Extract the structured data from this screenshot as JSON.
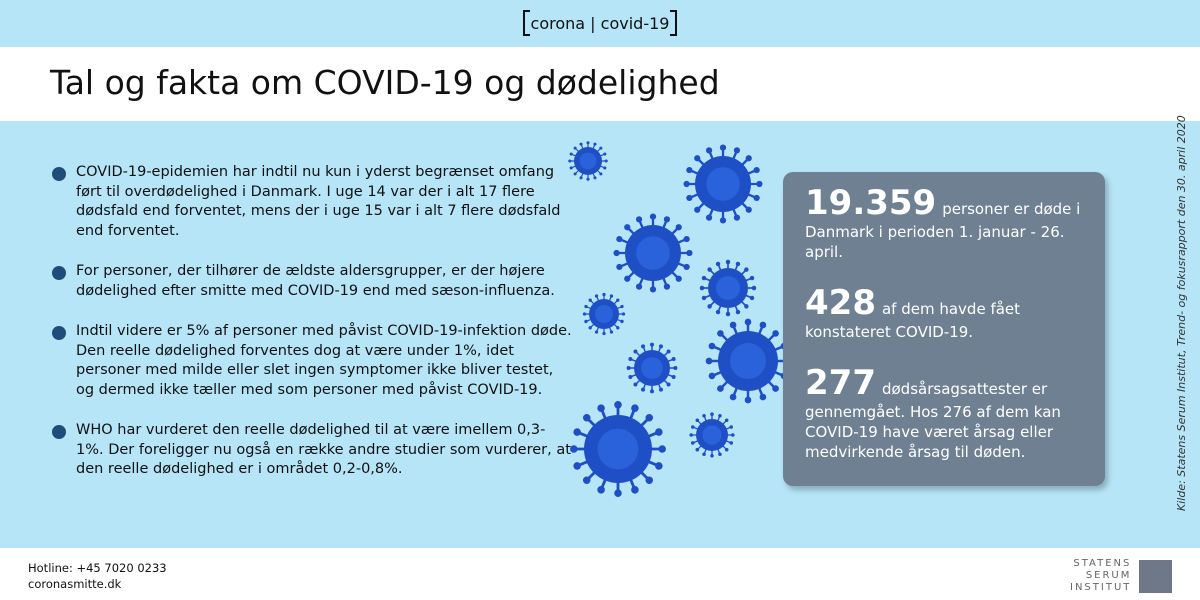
{
  "header": {
    "brand": "corona | covid-19",
    "title": "Tal og fakta om COVID-19 og dødelighed"
  },
  "bullets": [
    "COVID-19-epidemien har indtil nu kun i yderst begrænset omfang ført til overdødelighed i Danmark. I uge 14 var der i alt 17 flere dødsfald end forventet, mens der i uge 15 var i alt 7 flere dødsfald end forventet.",
    "For personer, der tilhører de ældste aldersgrupper, er der højere dødelighed efter smitte med COVID-19 end med sæson-influenza.",
    "Indtil videre er 5% af personer med påvist COVID-19-infektion døde. Den reelle dødelighed forventes dog at være under 1%, idet personer med milde eller slet ingen symptomer ikke bliver testet, og dermed ikke tæller med som personer med påvist COVID-19.",
    "WHO har vurderet den reelle dødelighed til at være imellem 0,3-1%. Der foreligger nu også en række andre studier som vurderer, at den reelle dødelighed er i området 0,2-0,8%."
  ],
  "stats": [
    {
      "number": "19.359",
      "text": "personer er døde i Danmark i perioden 1. januar - 26. april."
    },
    {
      "number": "428",
      "text": "af dem havde fået konstateret COVID-19."
    },
    {
      "number": "277",
      "text": "dødsårsagsattester er gennemgået. Hos 276 af dem kan COVID-19 have været årsag eller medvirkende årsag til døden."
    }
  ],
  "source": "Kilde: Statens Serum Institut, Trend- og fokusrapport den 30. april 2020",
  "footer": {
    "hotline": "Hotline: +45 7020 0233",
    "website": "coronasmitte.dk"
  },
  "logo": {
    "line1": "STATENS",
    "line2": "SERUM",
    "line3": "INSTITUT"
  },
  "colors": {
    "background": "#b6e5f8",
    "stat_box": "#6e8091",
    "bullet": "#1f4d7a",
    "virus": "#1f4fc4"
  }
}
